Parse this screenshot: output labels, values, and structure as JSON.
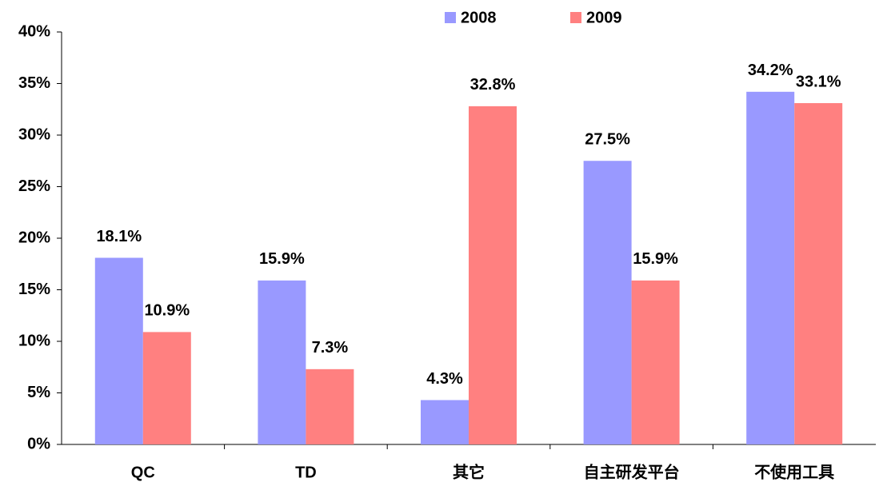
{
  "chart_data": {
    "type": "bar",
    "categories": [
      "QC",
      "TD",
      "其它",
      "自主研发平台",
      "不使用工具"
    ],
    "series": [
      {
        "name": "2008",
        "color": "#9999ff",
        "values": [
          18.1,
          15.9,
          4.3,
          27.5,
          34.2
        ],
        "value_labels": [
          "18.1%",
          "15.9%",
          "4.3%",
          "27.5%",
          "34.2%"
        ]
      },
      {
        "name": "2009",
        "color": "#ff8080",
        "values": [
          10.9,
          7.3,
          32.8,
          15.9,
          33.1
        ],
        "value_labels": [
          "10.9%",
          "7.3%",
          "32.8%",
          "15.9%",
          "33.1%"
        ]
      }
    ],
    "ylim": [
      0,
      40
    ],
    "yticks": [
      {
        "value": 0,
        "label": "0%"
      },
      {
        "value": 5,
        "label": "5%"
      },
      {
        "value": 10,
        "label": "10%"
      },
      {
        "value": 15,
        "label": "15%"
      },
      {
        "value": 20,
        "label": "20%"
      },
      {
        "value": 25,
        "label": "25%"
      },
      {
        "value": 30,
        "label": "30%"
      },
      {
        "value": 35,
        "label": "35%"
      },
      {
        "value": 40,
        "label": "40%"
      }
    ],
    "grid": false
  }
}
